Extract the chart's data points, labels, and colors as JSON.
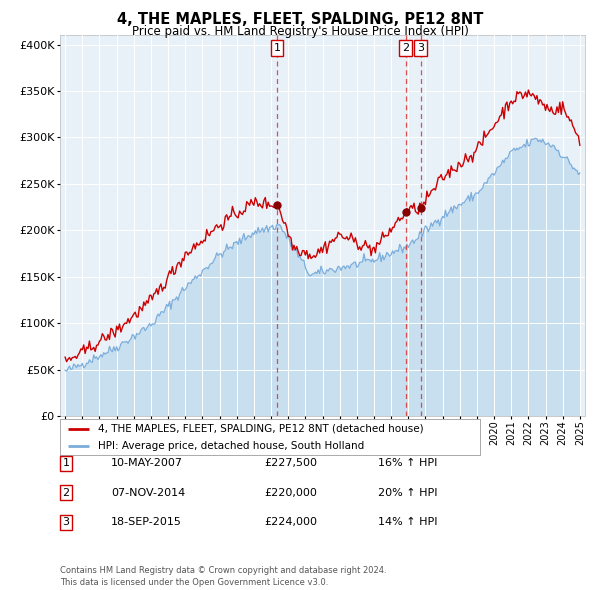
{
  "title": "4, THE MAPLES, FLEET, SPALDING, PE12 8NT",
  "subtitle": "Price paid vs. HM Land Registry's House Price Index (HPI)",
  "legend_line1": "4, THE MAPLES, FLEET, SPALDING, PE12 8NT (detached house)",
  "legend_line2": "HPI: Average price, detached house, South Holland",
  "transactions": [
    {
      "num": 1,
      "date": "10-MAY-2007",
      "price": 227500,
      "pct": "16%",
      "dir": "↑"
    },
    {
      "num": 2,
      "date": "07-NOV-2014",
      "price": 220000,
      "pct": "20%",
      "dir": "↑"
    },
    {
      "num": 3,
      "date": "18-SEP-2015",
      "price": 224000,
      "pct": "14%",
      "dir": "↑"
    }
  ],
  "transaction_dates_decimal": [
    2007.36,
    2014.85,
    2015.72
  ],
  "transaction_prices": [
    227500,
    220000,
    224000
  ],
  "price_color": "#cc0000",
  "hpi_color": "#7aaddb",
  "hpi_fill_color": "#c8dff0",
  "plot_bg_color": "#e8f0f8",
  "grid_color": "#ffffff",
  "dashed_color": "#dd3333",
  "ylim": [
    0,
    410000
  ],
  "yticks": [
    0,
    50000,
    100000,
    150000,
    200000,
    250000,
    300000,
    350000,
    400000
  ],
  "xlim_start": 1994.7,
  "xlim_end": 2025.3,
  "footnote1": "Contains HM Land Registry data © Crown copyright and database right 2024.",
  "footnote2": "This data is licensed under the Open Government Licence v3.0."
}
